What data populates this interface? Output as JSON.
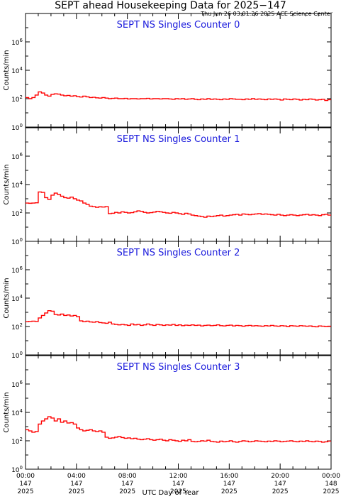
{
  "header": {
    "title": "SEPT ahead Housekeeping Data for 2025−147",
    "subtitle": "Thu Jun 26 03:01:26 2025 ACE Science Center"
  },
  "xaxis": {
    "label": "UTC Day of Year",
    "ticks": [
      {
        "time": "00:00",
        "day": "147",
        "year": "2025"
      },
      {
        "time": "04:00",
        "day": "147",
        "year": "2025"
      },
      {
        "time": "08:00",
        "day": "147",
        "year": "2025"
      },
      {
        "time": "12:00",
        "day": "147",
        "year": "2025"
      },
      {
        "time": "16:00",
        "day": "147",
        "year": "2025"
      },
      {
        "time": "20:00",
        "day": "147",
        "year": "2025"
      },
      {
        "time": "00:00",
        "day": "148",
        "year": "2025"
      }
    ]
  },
  "colors": {
    "line": "#ff0000",
    "panel_title": "#1a1adc",
    "axes": "#000000"
  },
  "chart_data": [
    {
      "type": "line",
      "title": "SEPT NS Singles Counter 0",
      "ylabel": "Counts/min",
      "yscale": "log",
      "ylim": [
        1,
        100000000
      ],
      "xlim": [
        0,
        24
      ],
      "grid": false,
      "yticks": [
        "10^0",
        "10^2",
        "10^4",
        "10^6"
      ],
      "x": [
        0,
        0.25,
        0.5,
        0.75,
        1,
        1.25,
        1.5,
        1.75,
        2,
        2.25,
        2.5,
        2.75,
        3,
        3.25,
        3.5,
        3.75,
        4,
        4.25,
        4.5,
        4.75,
        5,
        5.25,
        5.5,
        5.75,
        6,
        6.25,
        6.5,
        6.75,
        7,
        7.25,
        7.5,
        7.75,
        8,
        8.25,
        8.5,
        8.75,
        9,
        9.25,
        9.5,
        9.75,
        10,
        10.25,
        10.5,
        10.75,
        11,
        11.25,
        11.5,
        11.75,
        12,
        12.25,
        12.5,
        12.75,
        13,
        13.25,
        13.5,
        13.75,
        14,
        14.25,
        14.5,
        14.75,
        15,
        15.25,
        15.5,
        15.75,
        16,
        16.25,
        16.5,
        16.75,
        17,
        17.25,
        17.5,
        17.75,
        18,
        18.25,
        18.5,
        18.75,
        19,
        19.25,
        19.5,
        19.75,
        20,
        20.25,
        20.5,
        20.75,
        21,
        21.25,
        21.5,
        21.75,
        22,
        22.25,
        22.5,
        22.75,
        23,
        23.25,
        23.5,
        23.75
      ],
      "values": [
        120,
        100,
        120,
        180,
        300,
        250,
        180,
        150,
        200,
        220,
        210,
        180,
        160,
        170,
        150,
        160,
        140,
        130,
        150,
        135,
        120,
        125,
        115,
        110,
        120,
        110,
        100,
        105,
        110,
        100,
        100,
        105,
        95,
        100,
        100,
        95,
        100,
        100,
        105,
        95,
        100,
        100,
        95,
        100,
        100,
        95,
        90,
        100,
        95,
        100,
        90,
        95,
        100,
        90,
        85,
        95,
        90,
        100,
        90,
        95,
        90,
        85,
        95,
        90,
        100,
        95,
        90,
        90,
        85,
        95,
        90,
        100,
        90,
        95,
        90,
        85,
        95,
        90,
        95,
        90,
        80,
        95,
        90,
        85,
        95,
        90,
        80,
        90,
        85,
        95,
        90,
        80,
        85,
        90,
        75,
        85
      ]
    },
    {
      "type": "line",
      "title": "SEPT NS Singles Counter 1",
      "ylabel": "Counts/min",
      "yscale": "log",
      "ylim": [
        1,
        100000000
      ],
      "xlim": [
        0,
        24
      ],
      "grid": false,
      "yticks": [
        "10^0",
        "10^2",
        "10^4",
        "10^6"
      ],
      "x": [
        0,
        0.25,
        0.5,
        0.75,
        1,
        1.25,
        1.5,
        1.75,
        2,
        2.25,
        2.5,
        2.75,
        3,
        3.25,
        3.5,
        3.75,
        4,
        4.25,
        4.5,
        4.75,
        5,
        5.25,
        5.5,
        5.75,
        6,
        6.25,
        6.5,
        6.75,
        7,
        7.25,
        7.5,
        7.75,
        8,
        8.25,
        8.5,
        8.75,
        9,
        9.25,
        9.5,
        9.75,
        10,
        10.25,
        10.5,
        10.75,
        11,
        11.25,
        11.5,
        11.75,
        12,
        12.25,
        12.5,
        12.75,
        13,
        13.25,
        13.5,
        13.75,
        14,
        14.25,
        14.5,
        14.75,
        15,
        15.25,
        15.5,
        15.75,
        16,
        16.25,
        16.5,
        16.75,
        17,
        17.25,
        17.5,
        17.75,
        18,
        18.25,
        18.5,
        18.75,
        19,
        19.25,
        19.5,
        19.75,
        20,
        20.25,
        20.5,
        20.75,
        21,
        21.25,
        21.5,
        21.75,
        22,
        22.25,
        22.5,
        22.75,
        23,
        23.25,
        23.5,
        23.75
      ],
      "values": [
        500,
        480,
        500,
        520,
        3000,
        2800,
        1200,
        900,
        1800,
        2500,
        2000,
        1500,
        1200,
        1100,
        1300,
        1000,
        800,
        700,
        500,
        400,
        300,
        280,
        250,
        270,
        260,
        280,
        90,
        95,
        110,
        100,
        120,
        110,
        100,
        105,
        120,
        140,
        130,
        110,
        100,
        105,
        115,
        130,
        120,
        110,
        100,
        95,
        110,
        100,
        90,
        80,
        95,
        85,
        70,
        65,
        60,
        55,
        50,
        60,
        55,
        60,
        65,
        70,
        60,
        65,
        70,
        75,
        80,
        70,
        85,
        80,
        75,
        80,
        85,
        90,
        80,
        85,
        80,
        75,
        70,
        80,
        70,
        65,
        70,
        75,
        70,
        65,
        70,
        75,
        80,
        70,
        75,
        70,
        65,
        75,
        80,
        70
      ]
    },
    {
      "type": "line",
      "title": "SEPT NS Singles Counter 2",
      "ylabel": "Counts/min",
      "yscale": "log",
      "ylim": [
        1,
        100000000
      ],
      "xlim": [
        0,
        24
      ],
      "grid": false,
      "yticks": [
        "10^0",
        "10^2",
        "10^4",
        "10^6"
      ],
      "x": [
        0,
        0.25,
        0.5,
        0.75,
        1,
        1.25,
        1.5,
        1.75,
        2,
        2.25,
        2.5,
        2.75,
        3,
        3.25,
        3.5,
        3.75,
        4,
        4.25,
        4.5,
        4.75,
        5,
        5.25,
        5.5,
        5.75,
        6,
        6.25,
        6.5,
        6.75,
        7,
        7.25,
        7.5,
        7.75,
        8,
        8.25,
        8.5,
        8.75,
        9,
        9.25,
        9.5,
        9.75,
        10,
        10.25,
        10.5,
        10.75,
        11,
        11.25,
        11.5,
        11.75,
        12,
        12.25,
        12.5,
        12.75,
        13,
        13.25,
        13.5,
        13.75,
        14,
        14.25,
        14.5,
        14.75,
        15,
        15.25,
        15.5,
        15.75,
        16,
        16.25,
        16.5,
        16.75,
        17,
        17.25,
        17.5,
        17.75,
        18,
        18.25,
        18.5,
        18.75,
        19,
        19.25,
        19.5,
        19.75,
        20,
        20.25,
        20.5,
        20.75,
        21,
        21.25,
        21.5,
        21.75,
        22,
        22.25,
        22.5,
        22.75,
        23,
        23.25,
        23.5,
        23.75
      ],
      "values": [
        220,
        230,
        240,
        230,
        400,
        600,
        900,
        1300,
        1200,
        700,
        650,
        750,
        600,
        650,
        550,
        600,
        500,
        250,
        220,
        240,
        210,
        200,
        220,
        190,
        180,
        170,
        200,
        150,
        140,
        130,
        140,
        130,
        120,
        150,
        130,
        140,
        120,
        130,
        150,
        130,
        120,
        140,
        130,
        120,
        130,
        125,
        140,
        120,
        130,
        115,
        125,
        120,
        130,
        120,
        125,
        110,
        120,
        125,
        115,
        120,
        130,
        115,
        110,
        120,
        125,
        110,
        120,
        115,
        105,
        115,
        120,
        110,
        115,
        110,
        105,
        115,
        110,
        120,
        110,
        105,
        115,
        110,
        100,
        115,
        110,
        105,
        115,
        110,
        105,
        110,
        100,
        95,
        110,
        105,
        100,
        105
      ]
    },
    {
      "type": "line",
      "title": "SEPT NS Singles Counter 3",
      "ylabel": "Counts/min",
      "yscale": "log",
      "ylim": [
        1,
        100000000
      ],
      "xlim": [
        0,
        24
      ],
      "grid": false,
      "yticks": [
        "10^0",
        "10^2",
        "10^4",
        "10^6"
      ],
      "x": [
        0,
        0.25,
        0.5,
        0.75,
        1,
        1.25,
        1.5,
        1.75,
        2,
        2.25,
        2.5,
        2.75,
        3,
        3.25,
        3.5,
        3.75,
        4,
        4.25,
        4.5,
        4.75,
        5,
        5.25,
        5.5,
        5.75,
        6,
        6.25,
        6.5,
        6.75,
        7,
        7.25,
        7.5,
        7.75,
        8,
        8.25,
        8.5,
        8.75,
        9,
        9.25,
        9.5,
        9.75,
        10,
        10.25,
        10.5,
        10.75,
        11,
        11.25,
        11.5,
        11.75,
        12,
        12.25,
        12.5,
        12.75,
        13,
        13.25,
        13.5,
        13.75,
        14,
        14.25,
        14.5,
        14.75,
        15,
        15.25,
        15.5,
        15.75,
        16,
        16.25,
        16.5,
        16.75,
        17,
        17.25,
        17.5,
        17.75,
        18,
        18.25,
        18.5,
        18.75,
        19,
        19.25,
        19.5,
        19.75,
        20,
        20.25,
        20.5,
        20.75,
        21,
        21.25,
        21.5,
        21.75,
        22,
        22.25,
        22.5,
        22.75,
        23,
        23.25,
        23.5,
        23.75
      ],
      "values": [
        600,
        500,
        400,
        450,
        1500,
        2500,
        3500,
        5000,
        4000,
        2500,
        3500,
        2000,
        2500,
        1800,
        1900,
        1500,
        800,
        600,
        500,
        550,
        600,
        500,
        450,
        500,
        400,
        180,
        150,
        160,
        180,
        200,
        170,
        150,
        160,
        140,
        150,
        130,
        120,
        130,
        140,
        120,
        110,
        120,
        130,
        110,
        100,
        120,
        110,
        100,
        90,
        110,
        100,
        120,
        90,
        85,
        90,
        100,
        95,
        110,
        90,
        85,
        80,
        95,
        85,
        90,
        100,
        85,
        80,
        90,
        100,
        95,
        85,
        90,
        100,
        95,
        90,
        85,
        95,
        90,
        100,
        95,
        85,
        90,
        95,
        100,
        90,
        85,
        95,
        90,
        100,
        90,
        85,
        95,
        90,
        80,
        85,
        95
      ]
    }
  ]
}
